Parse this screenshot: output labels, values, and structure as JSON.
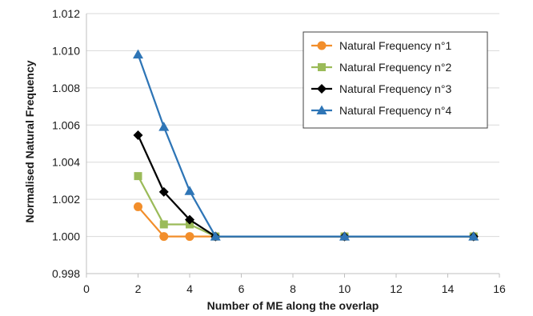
{
  "chart_data": {
    "type": "line",
    "title": "",
    "xlabel": "Number of ME along the overlap",
    "ylabel": "Normalised Natural Frequency",
    "xlim": [
      0,
      16
    ],
    "ylim": [
      0.998,
      1.012
    ],
    "x_ticks": [
      "0",
      "2",
      "4",
      "6",
      "8",
      "10",
      "12",
      "14",
      "16"
    ],
    "y_ticks": [
      "0.998",
      "1.000",
      "1.002",
      "1.004",
      "1.006",
      "1.008",
      "1.010",
      "1.012"
    ],
    "grid": "horizontal",
    "legend_position": "top-right",
    "series": [
      {
        "name": "Natural Frequency n°1",
        "color": "#f28e2b",
        "marker": "circle",
        "points": [
          [
            2,
            1.0016
          ],
          [
            3,
            1.0
          ],
          [
            4,
            1.0
          ],
          [
            5,
            1.0
          ],
          [
            10,
            1.0
          ],
          [
            15,
            1.0
          ]
        ]
      },
      {
        "name": "Natural Frequency n°2",
        "color": "#9bbb59",
        "marker": "square",
        "points": [
          [
            2,
            1.00325
          ],
          [
            3,
            1.00065
          ],
          [
            4,
            1.00065
          ],
          [
            5,
            1.0
          ],
          [
            10,
            1.0
          ],
          [
            15,
            1.0
          ]
        ]
      },
      {
        "name": "Natural Frequency n°3",
        "color": "#000000",
        "marker": "diamond",
        "points": [
          [
            2,
            1.00545
          ],
          [
            3,
            1.0024
          ],
          [
            4,
            1.0009
          ],
          [
            5,
            1.0
          ],
          [
            10,
            1.0
          ],
          [
            15,
            1.0
          ]
        ]
      },
      {
        "name": "Natural Frequency n°4",
        "color": "#2e75b6",
        "marker": "triangle",
        "points": [
          [
            2,
            1.0098
          ],
          [
            3,
            1.0059
          ],
          [
            4,
            1.00245
          ],
          [
            5,
            1.0
          ],
          [
            10,
            1.0
          ],
          [
            15,
            1.0
          ]
        ]
      }
    ]
  }
}
